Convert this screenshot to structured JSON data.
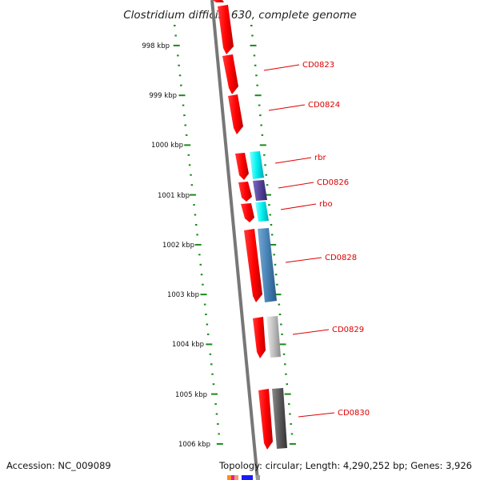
{
  "title": "Clostridium difficile 630, complete genome",
  "colors": {
    "backbone": "#777777",
    "tick": "#1a8a1a",
    "gene_label": "#dd0000",
    "cds_red": "#ff0000",
    "cyan": "#00f0f0",
    "purple": "#55449a",
    "steelblue": "#4682b4",
    "silver": "#c0c0c0",
    "dimgray": "#666666"
  },
  "scale_labels": [
    "998 kbp",
    "999 kbp",
    "1000 kbp",
    "1001 kbp",
    "1002 kbp",
    "1003 kbp",
    "1004 kbp",
    "1005 kbp",
    "1006 kbp"
  ],
  "gene_labels": [
    "CD0823",
    "CD0824",
    "rbr",
    "CD0826",
    "rbo",
    "CD0828",
    "CD0829",
    "CD0830"
  ],
  "footer": {
    "accession": "Accession: NC_009089",
    "summary": "Topology: circular; Length: 4,290,252 bp; Genes: 3,926"
  }
}
